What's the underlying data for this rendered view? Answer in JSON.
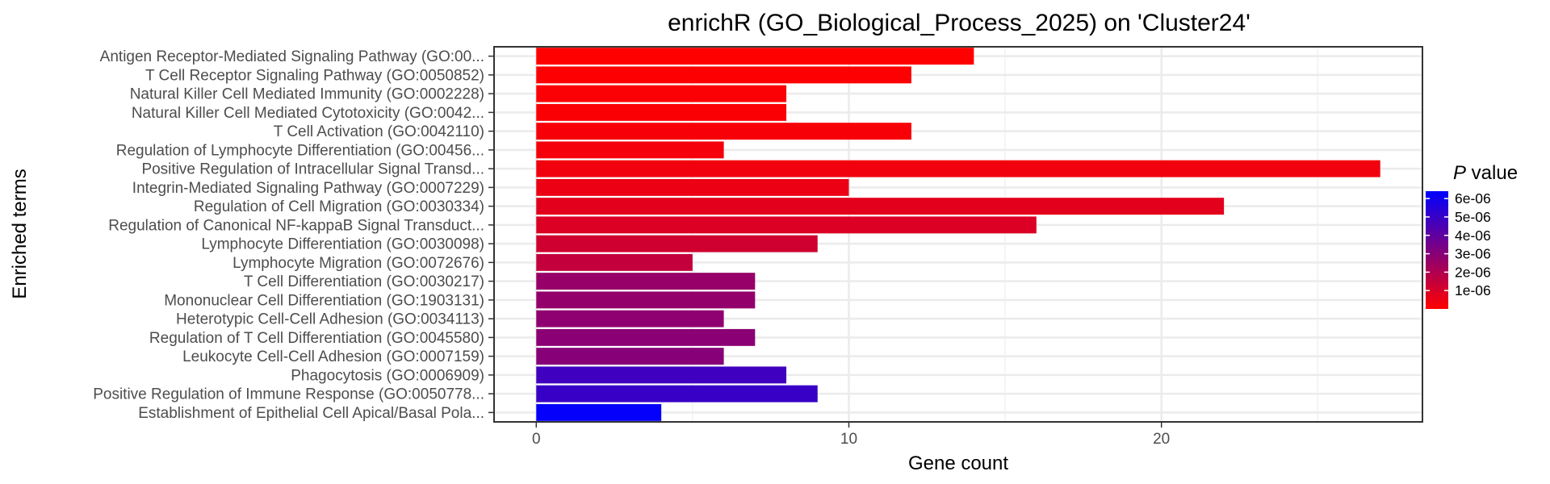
{
  "chart_data": {
    "type": "bar",
    "orientation": "horizontal",
    "title": "enrichR (GO_Biological_Process_2025) on 'Cluster24'",
    "xlabel": "Gene count",
    "ylabel": "Enriched terms",
    "xlim": [
      -1.35,
      28.35
    ],
    "x_ticks": [
      0,
      10,
      20
    ],
    "grid": true,
    "legend_position": "right",
    "categories": [
      "Antigen Receptor-Mediated Signaling Pathway (GO:00...",
      "T Cell Receptor Signaling Pathway (GO:0050852)",
      "Natural Killer Cell Mediated Immunity (GO:0002228)",
      "Natural Killer Cell Mediated Cytotoxicity (GO:0042...",
      "T Cell Activation (GO:0042110)",
      "Regulation of Lymphocyte Differentiation (GO:00456...",
      "Positive Regulation of Intracellular Signal Transd...",
      "Integrin-Mediated Signaling Pathway (GO:0007229)",
      "Regulation of Cell Migration (GO:0030334)",
      "Regulation of Canonical NF-kappaB Signal Transduct...",
      "Lymphocyte Differentiation (GO:0030098)",
      "Lymphocyte Migration (GO:0072676)",
      "T Cell Differentiation (GO:0030217)",
      "Mononuclear Cell Differentiation (GO:1903131)",
      "Heterotypic Cell-Cell Adhesion (GO:0034113)",
      "Regulation of T Cell Differentiation (GO:0045580)",
      "Leukocyte Cell-Cell Adhesion (GO:0007159)",
      "Phagocytosis (GO:0006909)",
      "Positive Regulation of Immune Response (GO:0050778...",
      "Establishment of Epithelial Cell Apical/Basal Pola..."
    ],
    "values": [
      14,
      12,
      8,
      8,
      12,
      6,
      27,
      10,
      22,
      16,
      9,
      5,
      7,
      7,
      6,
      7,
      6,
      8,
      9,
      4
    ],
    "p_values": [
      1e-08,
      5e-08,
      9e-08,
      1.3e-07,
      1.8e-07,
      2.5e-07,
      3.5e-07,
      5e-07,
      7e-07,
      9e-07,
      1.2e-06,
      1.5e-06,
      2.6e-06,
      2.7e-06,
      2.8e-06,
      2.9e-06,
      3e-06,
      4.8e-06,
      5e-06,
      6.3e-06
    ],
    "legend": {
      "title_italic": "P",
      "title_rest": " value",
      "labels": [
        "6e-06",
        "5e-06",
        "4e-06",
        "3e-06",
        "2e-06",
        "1e-06"
      ],
      "label_values": [
        6e-06,
        5e-06,
        4e-06,
        3e-06,
        2e-06,
        1e-06
      ],
      "range": [
        0,
        6.4e-06
      ],
      "color_low": "#ff0000",
      "color_high": "#0000ff"
    }
  }
}
